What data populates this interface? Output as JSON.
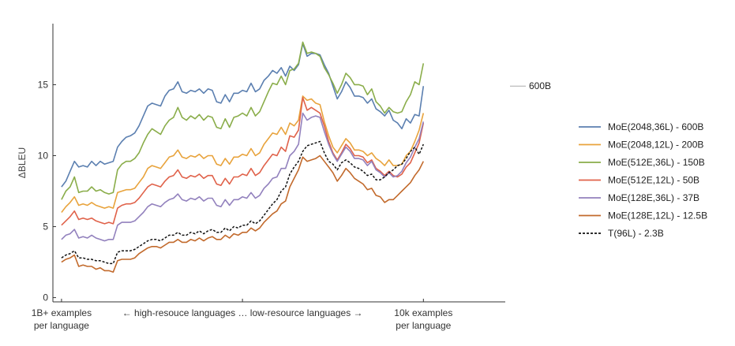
{
  "chart_data": {
    "type": "line",
    "ylabel": "ΔBLEU",
    "ylim": [
      -0.3,
      19.3
    ],
    "yticks": [
      0,
      5,
      10,
      15
    ],
    "xlim": [
      -2,
      103
    ],
    "x_text": {
      "left_line1": "1B+ examples",
      "left_line2": "per language",
      "middle": "← high-resouce languages  …  low-resource languages →",
      "right_line1": "10k examples",
      "right_line2": "per language"
    },
    "annotation": {
      "label": "600B",
      "y": 14.9
    },
    "legend_position": "right",
    "grid": false,
    "series": [
      {
        "name": "MoE(2048,36L) - 600B",
        "color": "#5b7fb0",
        "dashed": false,
        "values": [
          7.8,
          8.2,
          8.9,
          9.6,
          9.2,
          9.3,
          9.2,
          9.6,
          9.3,
          9.6,
          9.4,
          9.5,
          9.6,
          10.6,
          11.0,
          11.3,
          11.4,
          11.6,
          12.1,
          12.8,
          13.5,
          13.7,
          13.6,
          13.5,
          14.2,
          14.6,
          14.7,
          15.2,
          14.5,
          14.4,
          14.6,
          14.5,
          14.7,
          14.4,
          14.7,
          14.6,
          13.8,
          13.7,
          14.3,
          13.8,
          14.4,
          14.4,
          14.6,
          14.5,
          15.1,
          14.5,
          14.7,
          15.3,
          15.6,
          16.0,
          15.8,
          16.2,
          15.6,
          16.3,
          16.0,
          16.4,
          17.9,
          17.0,
          17.2,
          17.2,
          17.1,
          16.4,
          15.8,
          14.9,
          14.0,
          14.5,
          15.2,
          14.8,
          14.2,
          14.2,
          14.1,
          13.7,
          14.0,
          13.3,
          13.1,
          12.8,
          13.2,
          12.5,
          12.3,
          11.9,
          12.6,
          12.3,
          12.9,
          12.8,
          14.9
        ]
      },
      {
        "name": "MoE(2048,12L) - 200B",
        "color": "#e8a33c",
        "dashed": false,
        "values": [
          6.0,
          6.4,
          6.7,
          7.1,
          6.5,
          6.6,
          6.5,
          6.7,
          6.5,
          6.4,
          6.3,
          6.4,
          6.3,
          7.4,
          7.5,
          7.6,
          7.6,
          7.7,
          8.1,
          8.5,
          9.1,
          9.3,
          9.2,
          9.1,
          9.5,
          9.9,
          10.0,
          10.4,
          9.9,
          9.8,
          10.0,
          9.9,
          10.1,
          9.8,
          10.0,
          10.0,
          9.4,
          9.3,
          9.8,
          9.4,
          9.9,
          9.9,
          10.1,
          10.0,
          10.5,
          10.0,
          10.2,
          10.8,
          11.2,
          11.6,
          11.5,
          12.0,
          11.5,
          12.3,
          12.1,
          12.5,
          14.2,
          13.9,
          14.0,
          13.7,
          13.6,
          12.4,
          11.4,
          10.6,
          10.2,
          10.7,
          11.2,
          10.9,
          10.4,
          10.4,
          10.3,
          10.0,
          10.2,
          9.8,
          9.6,
          9.3,
          9.7,
          9.3,
          9.3,
          9.4,
          10.0,
          10.3,
          11.0,
          11.8,
          13.0
        ]
      },
      {
        "name": "MoE(512E,36L) - 150B",
        "color": "#8aad4a",
        "dashed": false,
        "values": [
          6.9,
          7.5,
          7.8,
          8.5,
          7.4,
          7.5,
          7.5,
          7.8,
          7.5,
          7.6,
          7.4,
          7.3,
          7.4,
          9.0,
          9.4,
          9.6,
          9.6,
          9.8,
          10.2,
          10.9,
          11.5,
          11.9,
          11.7,
          11.5,
          12.1,
          12.5,
          12.7,
          13.4,
          12.7,
          12.5,
          12.8,
          12.6,
          12.9,
          12.5,
          12.8,
          12.7,
          12.0,
          11.9,
          12.6,
          12.0,
          12.7,
          12.8,
          13.0,
          12.8,
          13.4,
          12.8,
          13.1,
          13.8,
          14.5,
          15.1,
          15.0,
          15.6,
          15.0,
          16.0,
          16.1,
          16.5,
          18.0,
          17.2,
          17.3,
          17.2,
          17.0,
          16.2,
          15.7,
          15.1,
          14.4,
          15.0,
          15.8,
          15.5,
          15.0,
          15.0,
          14.9,
          14.3,
          14.7,
          13.8,
          13.5,
          13.0,
          13.4,
          13.1,
          13.0,
          13.1,
          13.8,
          14.3,
          15.2,
          15.0,
          16.5
        ]
      },
      {
        "name": "MoE(512E,12L) - 50B",
        "color": "#e0624a",
        "dashed": false,
        "values": [
          5.1,
          5.4,
          5.7,
          6.1,
          5.5,
          5.6,
          5.5,
          5.6,
          5.4,
          5.3,
          5.2,
          5.3,
          5.2,
          6.3,
          6.5,
          6.6,
          6.6,
          6.7,
          7.0,
          7.4,
          7.8,
          8.0,
          7.9,
          7.8,
          8.2,
          8.5,
          8.6,
          9.0,
          8.5,
          8.4,
          8.6,
          8.5,
          8.7,
          8.4,
          8.6,
          8.6,
          8.0,
          7.9,
          8.4,
          8.0,
          8.5,
          8.5,
          8.7,
          8.6,
          9.1,
          8.6,
          8.8,
          9.3,
          9.7,
          10.1,
          10.0,
          10.6,
          10.3,
          11.4,
          11.3,
          11.8,
          14.1,
          13.2,
          13.4,
          13.2,
          13.0,
          12.1,
          11.0,
          10.2,
          9.7,
          10.2,
          10.8,
          10.5,
          10.0,
          10.0,
          9.9,
          9.5,
          9.7,
          9.1,
          8.9,
          8.6,
          8.9,
          8.6,
          8.5,
          8.7,
          9.2,
          9.5,
          10.2,
          10.9,
          12.3
        ]
      },
      {
        "name": "MoE(128E,36L) - 37B",
        "color": "#9281bd",
        "dashed": false,
        "values": [
          4.1,
          4.4,
          4.5,
          4.8,
          4.2,
          4.3,
          4.2,
          4.4,
          4.2,
          4.1,
          4.0,
          4.1,
          4.1,
          5.1,
          5.3,
          5.3,
          5.3,
          5.4,
          5.7,
          6.0,
          6.4,
          6.6,
          6.5,
          6.4,
          6.7,
          6.9,
          7.0,
          7.3,
          6.9,
          6.8,
          7.0,
          6.9,
          7.1,
          6.8,
          7.0,
          7.0,
          6.5,
          6.4,
          6.9,
          6.5,
          6.9,
          6.9,
          7.1,
          7.0,
          7.4,
          7.0,
          7.2,
          7.7,
          8.0,
          8.4,
          8.5,
          9.1,
          9.1,
          10.0,
          10.3,
          10.8,
          13.0,
          12.5,
          12.7,
          12.8,
          12.7,
          11.7,
          10.8,
          10.1,
          9.6,
          10.1,
          10.6,
          10.3,
          9.8,
          9.8,
          9.7,
          9.3,
          9.6,
          9.0,
          8.8,
          8.5,
          8.8,
          8.5,
          8.6,
          8.9,
          9.5,
          9.9,
          10.6,
          11.2,
          12.4
        ]
      },
      {
        "name": "MoE(128E,12L) - 12.5B",
        "color": "#c26a2c",
        "dashed": false,
        "values": [
          2.5,
          2.7,
          2.8,
          3.0,
          2.2,
          2.3,
          2.2,
          2.2,
          2.0,
          2.1,
          1.9,
          1.9,
          1.8,
          2.6,
          2.7,
          2.7,
          2.7,
          2.8,
          3.1,
          3.3,
          3.5,
          3.6,
          3.6,
          3.5,
          3.7,
          3.9,
          3.9,
          4.1,
          3.9,
          3.9,
          4.1,
          4.0,
          4.2,
          4.0,
          4.2,
          4.3,
          4.1,
          4.1,
          4.4,
          4.2,
          4.5,
          4.4,
          4.6,
          4.6,
          4.9,
          4.7,
          4.9,
          5.3,
          5.6,
          5.9,
          6.1,
          6.6,
          6.8,
          7.8,
          8.4,
          9.0,
          9.9,
          9.6,
          9.7,
          9.8,
          10.0,
          9.6,
          9.2,
          8.8,
          8.2,
          8.6,
          9.1,
          8.8,
          8.4,
          8.2,
          8.0,
          7.6,
          7.7,
          7.2,
          7.1,
          6.7,
          6.9,
          6.9,
          7.2,
          7.5,
          7.8,
          8.1,
          8.6,
          9.0,
          9.6
        ]
      },
      {
        "name": "T(96L) - 2.3B",
        "color": "#111111",
        "dashed": true,
        "values": [
          2.8,
          3.0,
          3.1,
          3.3,
          2.8,
          2.8,
          2.7,
          2.7,
          2.6,
          2.6,
          2.5,
          2.4,
          2.4,
          3.2,
          3.3,
          3.3,
          3.3,
          3.4,
          3.6,
          3.8,
          4.0,
          4.1,
          4.1,
          4.0,
          4.2,
          4.4,
          4.4,
          4.6,
          4.4,
          4.4,
          4.6,
          4.5,
          4.7,
          4.5,
          4.7,
          4.8,
          4.6,
          4.6,
          4.9,
          4.7,
          5.0,
          4.9,
          5.1,
          5.1,
          5.4,
          5.2,
          5.4,
          5.8,
          6.2,
          6.6,
          6.9,
          7.5,
          7.8,
          8.7,
          9.2,
          9.6,
          10.3,
          10.7,
          10.8,
          10.9,
          11.0,
          10.2,
          9.6,
          9.4,
          9.0,
          9.5,
          9.7,
          9.5,
          9.2,
          9.1,
          8.9,
          8.6,
          8.7,
          8.3,
          8.3,
          8.5,
          8.8,
          9.0,
          9.3,
          9.4,
          9.8,
          10.3,
          10.6,
          10.1,
          10.8
        ]
      }
    ]
  }
}
